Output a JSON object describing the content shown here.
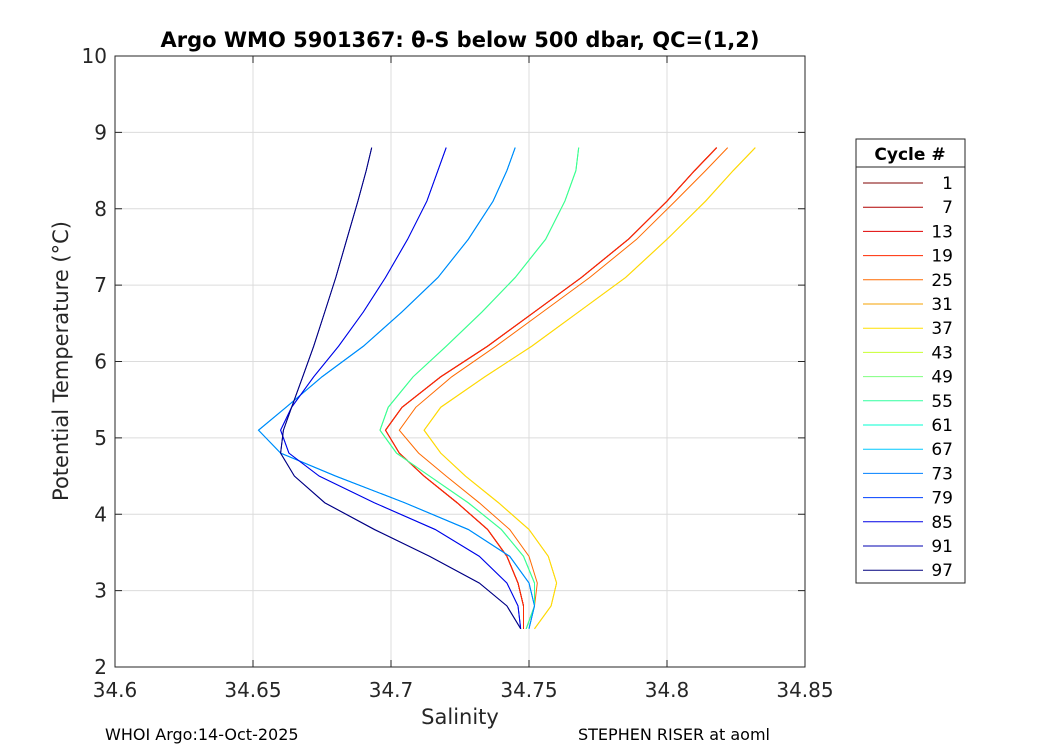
{
  "chart_data": {
    "type": "line",
    "title": "Argo WMO 5901367: θ-S below 500 dbar,  QC=(1,2)",
    "xlabel": "Salinity",
    "ylabel": "Potential Temperature (°C)",
    "xlim": [
      34.6,
      34.85
    ],
    "ylim": [
      2,
      10
    ],
    "xticks": [
      "34.6",
      "34.65",
      "34.7",
      "34.75",
      "34.8",
      "34.85"
    ],
    "yticks": [
      "2",
      "3",
      "4",
      "5",
      "6",
      "7",
      "8",
      "9",
      "10"
    ],
    "grid": true,
    "legend": {
      "title": "Cycle #",
      "placement": "right",
      "entries": [
        "1",
        "7",
        "13",
        "19",
        "25",
        "31",
        "37",
        "43",
        "49",
        "55",
        "61",
        "67",
        "73",
        "79",
        "85",
        "91",
        "97"
      ],
      "colors": [
        "#7f0000",
        "#b00000",
        "#e00000",
        "#ff2a00",
        "#ff6a00",
        "#f5a000",
        "#ffe000",
        "#c8ff30",
        "#7fff7f",
        "#30ff9f",
        "#00ffd0",
        "#00c8ff",
        "#0080ff",
        "#0040ff",
        "#0000e6",
        "#0000b0",
        "#00007f"
      ]
    },
    "series": [
      {
        "name": "Cycle 1",
        "salinity": [
          34.748,
          34.748,
          34.746,
          34.742,
          34.735,
          34.724,
          34.712,
          34.703,
          34.698,
          34.704,
          34.718,
          34.735,
          34.752,
          34.769,
          34.786,
          34.8,
          34.81,
          34.818
        ],
        "theta": [
          2.5,
          2.8,
          3.1,
          3.45,
          3.8,
          4.15,
          4.5,
          4.8,
          5.1,
          5.4,
          5.8,
          6.2,
          6.65,
          7.1,
          7.6,
          8.1,
          8.5,
          8.8
        ]
      },
      {
        "name": "Cycle 7",
        "salinity": [
          34.748,
          34.748,
          34.746,
          34.742,
          34.735,
          34.724,
          34.712,
          34.703,
          34.698,
          34.704,
          34.718,
          34.735,
          34.752,
          34.769,
          34.786,
          34.8,
          34.81,
          34.818
        ],
        "theta": [
          2.5,
          2.8,
          3.1,
          3.45,
          3.8,
          4.15,
          4.5,
          4.8,
          5.1,
          5.4,
          5.8,
          6.2,
          6.65,
          7.1,
          7.6,
          8.1,
          8.5,
          8.8
        ]
      },
      {
        "name": "Cycle 13",
        "salinity": [
          34.748,
          34.748,
          34.746,
          34.742,
          34.735,
          34.724,
          34.712,
          34.703,
          34.698,
          34.704,
          34.718,
          34.735,
          34.752,
          34.769,
          34.786,
          34.8,
          34.81,
          34.818
        ],
        "theta": [
          2.5,
          2.8,
          3.1,
          3.45,
          3.8,
          4.15,
          4.5,
          4.8,
          5.1,
          5.4,
          5.8,
          6.2,
          6.65,
          7.1,
          7.6,
          8.1,
          8.5,
          8.8
        ]
      },
      {
        "name": "Cycle 19",
        "salinity": [
          34.748,
          34.748,
          34.746,
          34.742,
          34.735,
          34.724,
          34.712,
          34.703,
          34.698,
          34.704,
          34.718,
          34.735,
          34.752,
          34.769,
          34.786,
          34.8,
          34.81,
          34.818
        ],
        "theta": [
          2.5,
          2.8,
          3.1,
          3.45,
          3.8,
          4.15,
          4.5,
          4.8,
          5.1,
          5.4,
          5.8,
          6.2,
          6.65,
          7.1,
          7.6,
          8.1,
          8.5,
          8.8
        ]
      },
      {
        "name": "Cycle 25",
        "salinity": [
          34.749,
          34.752,
          34.753,
          34.75,
          34.743,
          34.732,
          34.72,
          34.71,
          34.703,
          34.709,
          34.722,
          34.738,
          34.755,
          34.772,
          34.789,
          34.803,
          34.814,
          34.822
        ],
        "theta": [
          2.5,
          2.8,
          3.1,
          3.45,
          3.8,
          4.15,
          4.5,
          4.8,
          5.1,
          5.4,
          5.8,
          6.2,
          6.65,
          7.1,
          7.6,
          8.1,
          8.5,
          8.8
        ]
      },
      {
        "name": "Cycle 31",
        "salinity": [
          34.752,
          34.758,
          34.76,
          34.757,
          34.75,
          34.739,
          34.727,
          34.718,
          34.712,
          34.718,
          34.734,
          34.751,
          34.768,
          34.785,
          34.8,
          34.814,
          34.824,
          34.832
        ],
        "theta": [
          2.5,
          2.8,
          3.1,
          3.45,
          3.8,
          4.15,
          4.5,
          4.8,
          5.1,
          5.4,
          5.8,
          6.2,
          6.65,
          7.1,
          7.6,
          8.1,
          8.5,
          8.8
        ]
      },
      {
        "name": "Cycle 37",
        "salinity": [
          34.752,
          34.758,
          34.76,
          34.757,
          34.75,
          34.739,
          34.727,
          34.718,
          34.712,
          34.718,
          34.734,
          34.751,
          34.768,
          34.785,
          34.8,
          34.814,
          34.824,
          34.832
        ],
        "theta": [
          2.5,
          2.8,
          3.1,
          3.45,
          3.8,
          4.15,
          4.5,
          4.8,
          5.1,
          5.4,
          5.8,
          6.2,
          6.65,
          7.1,
          7.6,
          8.1,
          8.5,
          8.8
        ]
      },
      {
        "name": "Cycle 43",
        "salinity": [
          34.749,
          34.752,
          34.752,
          34.748,
          34.74,
          34.728,
          34.714,
          34.702,
          34.696,
          34.699,
          34.708,
          34.72,
          34.733,
          34.745,
          34.756,
          34.763,
          34.767,
          34.768
        ],
        "theta": [
          2.5,
          2.8,
          3.1,
          3.45,
          3.8,
          4.15,
          4.5,
          4.8,
          5.1,
          5.4,
          5.8,
          6.2,
          6.65,
          7.1,
          7.6,
          8.1,
          8.5,
          8.8
        ]
      },
      {
        "name": "Cycle 49",
        "salinity": [
          34.749,
          34.752,
          34.752,
          34.748,
          34.74,
          34.728,
          34.714,
          34.702,
          34.696,
          34.699,
          34.708,
          34.72,
          34.733,
          34.745,
          34.756,
          34.763,
          34.767,
          34.768
        ],
        "theta": [
          2.5,
          2.8,
          3.1,
          3.45,
          3.8,
          4.15,
          4.5,
          4.8,
          5.1,
          5.4,
          5.8,
          6.2,
          6.65,
          7.1,
          7.6,
          8.1,
          8.5,
          8.8
        ]
      },
      {
        "name": "Cycle 55",
        "salinity": [
          34.749,
          34.752,
          34.752,
          34.748,
          34.74,
          34.728,
          34.714,
          34.702,
          34.696,
          34.699,
          34.708,
          34.72,
          34.733,
          34.745,
          34.756,
          34.763,
          34.767,
          34.768
        ],
        "theta": [
          2.5,
          2.8,
          3.1,
          3.45,
          3.8,
          4.15,
          4.5,
          4.8,
          5.1,
          5.4,
          5.8,
          6.2,
          6.65,
          7.1,
          7.6,
          8.1,
          8.5,
          8.8
        ]
      },
      {
        "name": "Cycle 61",
        "salinity": [
          34.75,
          34.752,
          34.75,
          34.743,
          34.728,
          34.705,
          34.68,
          34.66,
          34.652,
          34.662,
          34.675,
          34.69,
          34.704,
          34.717,
          34.728,
          34.737,
          34.742,
          34.745
        ],
        "theta": [
          2.5,
          2.8,
          3.1,
          3.45,
          3.8,
          4.15,
          4.5,
          4.8,
          5.1,
          5.4,
          5.8,
          6.2,
          6.65,
          7.1,
          7.6,
          8.1,
          8.5,
          8.8
        ]
      },
      {
        "name": "Cycle 67",
        "salinity": [
          34.75,
          34.752,
          34.75,
          34.743,
          34.728,
          34.705,
          34.68,
          34.66,
          34.652,
          34.662,
          34.675,
          34.69,
          34.704,
          34.717,
          34.728,
          34.737,
          34.742,
          34.745
        ],
        "theta": [
          2.5,
          2.8,
          3.1,
          3.45,
          3.8,
          4.15,
          4.5,
          4.8,
          5.1,
          5.4,
          5.8,
          6.2,
          6.65,
          7.1,
          7.6,
          8.1,
          8.5,
          8.8
        ]
      },
      {
        "name": "Cycle 73",
        "salinity": [
          34.75,
          34.752,
          34.75,
          34.743,
          34.728,
          34.705,
          34.68,
          34.66,
          34.652,
          34.662,
          34.675,
          34.69,
          34.704,
          34.717,
          34.728,
          34.737,
          34.742,
          34.745
        ],
        "theta": [
          2.5,
          2.8,
          3.1,
          3.45,
          3.8,
          4.15,
          4.5,
          4.8,
          5.1,
          5.4,
          5.8,
          6.2,
          6.65,
          7.1,
          7.6,
          8.1,
          8.5,
          8.8
        ]
      },
      {
        "name": "Cycle 79",
        "salinity": [
          34.747,
          34.746,
          34.742,
          34.732,
          34.716,
          34.694,
          34.674,
          34.663,
          34.66,
          34.664,
          34.672,
          34.681,
          34.69,
          34.698,
          34.706,
          34.713,
          34.717,
          34.72
        ],
        "theta": [
          2.5,
          2.8,
          3.1,
          3.45,
          3.8,
          4.15,
          4.5,
          4.8,
          5.1,
          5.4,
          5.8,
          6.2,
          6.65,
          7.1,
          7.6,
          8.1,
          8.5,
          8.8
        ]
      },
      {
        "name": "Cycle 85",
        "salinity": [
          34.747,
          34.746,
          34.742,
          34.732,
          34.716,
          34.694,
          34.674,
          34.663,
          34.66,
          34.664,
          34.672,
          34.681,
          34.69,
          34.698,
          34.706,
          34.713,
          34.717,
          34.72
        ],
        "theta": [
          2.5,
          2.8,
          3.1,
          3.45,
          3.8,
          4.15,
          4.5,
          4.8,
          5.1,
          5.4,
          5.8,
          6.2,
          6.65,
          7.1,
          7.6,
          8.1,
          8.5,
          8.8
        ]
      },
      {
        "name": "Cycle 91",
        "salinity": [
          34.747,
          34.742,
          34.732,
          34.714,
          34.694,
          34.676,
          34.665,
          34.66,
          34.661,
          34.664,
          34.668,
          34.672,
          34.676,
          34.68,
          34.684,
          34.688,
          34.691,
          34.693
        ],
        "theta": [
          2.5,
          2.8,
          3.1,
          3.45,
          3.8,
          4.15,
          4.5,
          4.8,
          5.1,
          5.4,
          5.8,
          6.2,
          6.65,
          7.1,
          7.6,
          8.1,
          8.5,
          8.8
        ]
      },
      {
        "name": "Cycle 97",
        "salinity": [
          34.747,
          34.742,
          34.732,
          34.714,
          34.694,
          34.676,
          34.665,
          34.66,
          34.661,
          34.664,
          34.668,
          34.672,
          34.676,
          34.68,
          34.684,
          34.688,
          34.691,
          34.693
        ],
        "theta": [
          2.5,
          2.8,
          3.1,
          3.45,
          3.8,
          4.15,
          4.5,
          4.8,
          5.1,
          5.4,
          5.8,
          6.2,
          6.65,
          7.1,
          7.6,
          8.1,
          8.5,
          8.8
        ]
      }
    ]
  },
  "footer": {
    "left": "WHOI Argo:14-Oct-2025",
    "right": "STEPHEN RISER at aoml"
  }
}
